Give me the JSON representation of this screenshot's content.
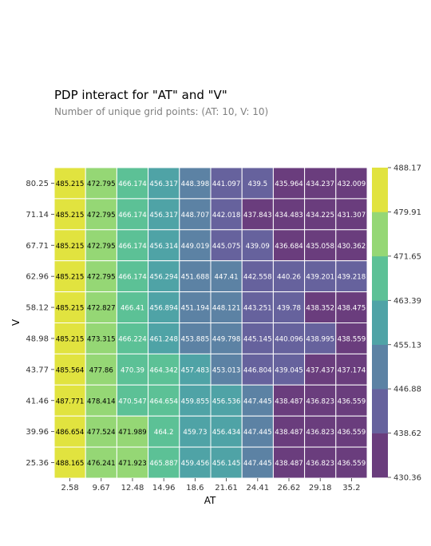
{
  "chart_data": {
    "type": "heatmap",
    "title": "PDP interact for \"AT\" and \"V\"",
    "subtitle": "Number of unique grid points: (AT: 10, V: 10)",
    "xlabel": "AT",
    "ylabel": "V",
    "x": [
      "2.58",
      "9.67",
      "12.48",
      "14.96",
      "18.6",
      "21.61",
      "24.41",
      "26.62",
      "29.18",
      "35.2"
    ],
    "y": [
      "80.25",
      "71.14",
      "67.71",
      "62.96",
      "58.12",
      "48.98",
      "43.77",
      "41.46",
      "39.96",
      "25.36"
    ],
    "values": [
      [
        485.215,
        472.795,
        466.174,
        456.317,
        448.398,
        441.097,
        439.5,
        435.964,
        434.237,
        432.009
      ],
      [
        485.215,
        472.795,
        466.174,
        456.317,
        448.707,
        442.018,
        437.843,
        434.483,
        434.225,
        431.307
      ],
      [
        485.215,
        472.795,
        466.174,
        456.314,
        449.019,
        445.075,
        439.09,
        436.684,
        435.058,
        430.362
      ],
      [
        485.215,
        472.795,
        466.174,
        456.294,
        451.688,
        447.41,
        442.558,
        440.26,
        439.201,
        439.218
      ],
      [
        485.215,
        472.827,
        466.41,
        456.894,
        451.194,
        448.121,
        443.251,
        439.78,
        438.352,
        438.475
      ],
      [
        485.215,
        473.315,
        466.224,
        461.248,
        453.885,
        449.798,
        445.145,
        440.096,
        438.995,
        438.559
      ],
      [
        485.564,
        477.86,
        470.39,
        464.342,
        457.483,
        453.013,
        446.804,
        439.045,
        437.437,
        437.174
      ],
      [
        487.771,
        478.414,
        470.547,
        464.654,
        459.855,
        456.536,
        447.445,
        438.487,
        436.823,
        436.559
      ],
      [
        486.654,
        477.524,
        471.989,
        464.2,
        459.73,
        456.434,
        447.445,
        438.487,
        436.823,
        436.559
      ],
      [
        488.165,
        476.241,
        471.923,
        465.887,
        459.456,
        456.145,
        447.445,
        438.487,
        436.823,
        436.559
      ]
    ],
    "colorbar": {
      "ticks": [
        "430.36",
        "438.62",
        "446.88",
        "455.13",
        "463.39",
        "471.65",
        "479.91",
        "488.17"
      ],
      "range": [
        430.36,
        488.17
      ],
      "colors": [
        "#6a3d7d",
        "#66629d",
        "#5c82a4",
        "#4fa3a6",
        "#5cc196",
        "#95d775",
        "#e1e33f"
      ]
    }
  }
}
